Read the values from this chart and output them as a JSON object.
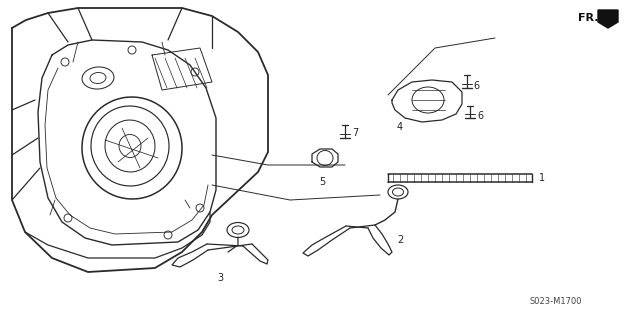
{
  "title": "",
  "background_color": "#ffffff",
  "line_color": "#2a2a2a",
  "text_color": "#222222",
  "diagram_code": "S023-M1700",
  "fr_label": "FR.",
  "figsize": [
    6.4,
    3.19
  ],
  "dpi": 100
}
